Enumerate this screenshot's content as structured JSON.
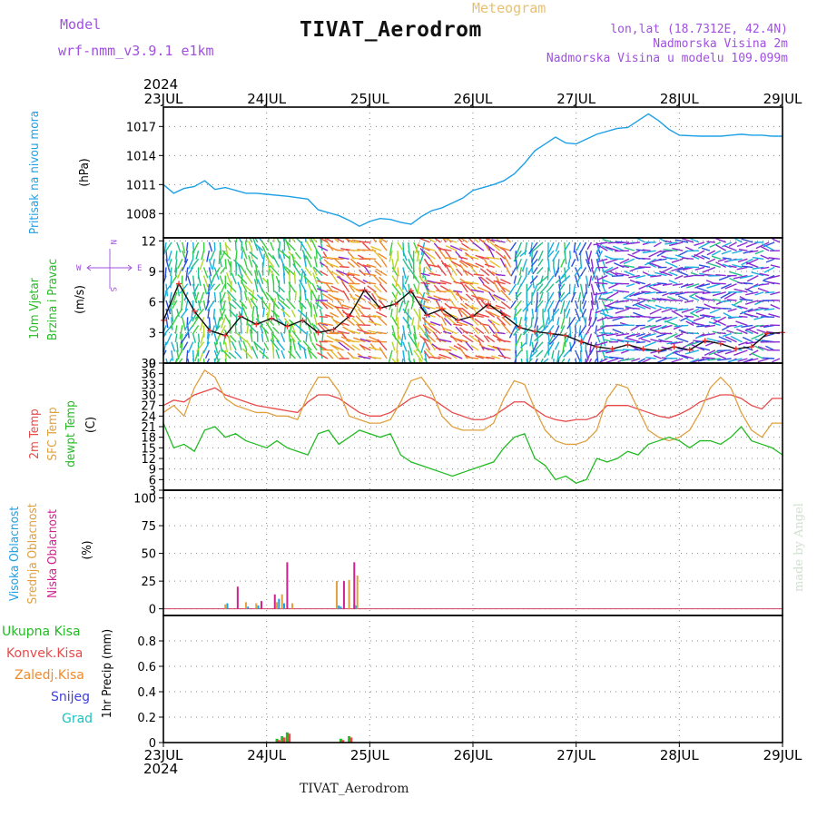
{
  "header": {
    "model_label": "Model",
    "model_name": "wrf-nmm_v3.9.1  e1km",
    "title": "TIVAT_Aerodrom",
    "meteogram": "Meteogram",
    "lonlat": "lon,lat (18.7312E, 42.4N)",
    "elev": "Nadmorska Visina 2m",
    "elev_model": "Nadmorska Visina u modelu 109.099m",
    "year_top": "2024",
    "year_bottom": "2024",
    "footer": "TIVAT_Aerodrom",
    "watermark": "made by Angel"
  },
  "colors": {
    "pressure": "#1ea0e6",
    "t2m": "#e84a4a",
    "sfc": "#e0a040",
    "dew": "#22bb22",
    "high": "#1ea0e6",
    "mid": "#e0a040",
    "low": "#d02090",
    "model": "#a050e0"
  },
  "chart_data": [
    {
      "type": "line",
      "panel": "pressure",
      "ylabel_lines": [
        "Pritisak na nivou mora",
        "(hPa)"
      ],
      "ylim": [
        1005.5,
        1019
      ],
      "yticks": [
        1008,
        1011,
        1014,
        1017
      ],
      "x_days": [
        "23JUL",
        "24JUL",
        "25JUL",
        "26JUL",
        "27JUL",
        "28JUL",
        "29JUL"
      ],
      "series": [
        {
          "key": "pressure",
          "x": [
            0,
            0.1,
            0.2,
            0.3,
            0.4,
            0.5,
            0.6,
            0.7,
            0.8,
            0.9,
            1.0,
            1.2,
            1.4,
            1.5,
            1.6,
            1.7,
            1.8,
            1.9,
            2.0,
            2.1,
            2.2,
            2.3,
            2.4,
            2.5,
            2.6,
            2.7,
            2.8,
            2.9,
            3.0,
            3.1,
            3.2,
            3.3,
            3.4,
            3.5,
            3.6,
            3.7,
            3.8,
            3.9,
            4.0,
            4.2,
            4.4,
            4.5,
            4.6,
            4.7,
            4.8,
            4.9,
            5.0,
            5.2,
            5.4,
            5.5,
            5.6,
            5.7,
            5.8,
            5.9,
            6.0
          ],
          "y": [
            1011,
            1010.1,
            1010.6,
            1010.8,
            1011.4,
            1010.5,
            1010.7,
            1010.4,
            1010.1,
            1010.1,
            1010,
            1009.8,
            1009.5,
            1008.4,
            1008.1,
            1007.8,
            1007.3,
            1006.7,
            1007.2,
            1007.5,
            1007.4,
            1007.1,
            1006.9,
            1007.7,
            1008.3,
            1008.6,
            1009.1,
            1009.6,
            1010.4,
            1010.7,
            1011,
            1011.4,
            1012.1,
            1013.2,
            1014.5,
            1015.2,
            1015.9,
            1015.3,
            1015.2,
            1016.2,
            1016.8,
            1016.9,
            1017.6,
            1018.3,
            1017.6,
            1016.7,
            1016.1,
            1016.0,
            1016,
            1016.1,
            1016.2,
            1016.1,
            1016.1,
            1016.0,
            1016.0
          ]
        }
      ]
    },
    {
      "type": "line",
      "panel": "wind",
      "ylabel_lines": [
        "10m Vjetar",
        "Brzina i Pravac",
        "(m/s)"
      ],
      "dir_legend": [
        "N",
        "W",
        "E",
        "S"
      ],
      "ylim": [
        0,
        12.3
      ],
      "yticks": [
        0,
        3,
        6,
        9,
        12
      ],
      "series": [
        {
          "key": "wind_speed",
          "name": "",
          "x": [
            0,
            0.15,
            0.3,
            0.45,
            0.6,
            0.75,
            0.9,
            1.05,
            1.2,
            1.35,
            1.5,
            1.65,
            1.8,
            1.95,
            2.1,
            2.25,
            2.4,
            2.55,
            2.7,
            2.85,
            3.0,
            3.15,
            3.3,
            3.45,
            3.6,
            3.75,
            3.9,
            4.05,
            4.2,
            4.35,
            4.5,
            4.65,
            4.8,
            4.95,
            5.1,
            5.25,
            5.4,
            5.55,
            5.7,
            5.85,
            6.0
          ],
          "y": [
            4.2,
            7.8,
            5.1,
            3.2,
            2.7,
            4.6,
            3.8,
            4.4,
            3.6,
            4.2,
            3.0,
            3.3,
            4.6,
            7.2,
            5.4,
            5.8,
            7.1,
            4.7,
            5.3,
            4.2,
            4.6,
            5.8,
            4.7,
            3.5,
            3.1,
            2.9,
            2.7,
            2.1,
            1.6,
            1.4,
            1.8,
            1.4,
            1.2,
            1.6,
            1.3,
            2.2,
            1.9,
            1.4,
            1.6,
            2.9,
            3.0
          ]
        }
      ]
    },
    {
      "type": "line",
      "panel": "temperature",
      "ylabel_lines": [
        "2m Temp",
        "SFC Temp",
        "dewpt Temp",
        "(C)"
      ],
      "ylim": [
        3,
        39
      ],
      "yticks": [
        3,
        6,
        9,
        12,
        15,
        18,
        21,
        24,
        27,
        30,
        33,
        36,
        39
      ],
      "series": [
        {
          "key": "t2m",
          "name": "2m Temp",
          "x": [
            0,
            0.1,
            0.2,
            0.3,
            0.4,
            0.5,
            0.6,
            0.7,
            0.8,
            0.9,
            1.0,
            1.1,
            1.2,
            1.3,
            1.4,
            1.5,
            1.6,
            1.7,
            1.8,
            1.9,
            2.0,
            2.1,
            2.2,
            2.3,
            2.4,
            2.5,
            2.6,
            2.7,
            2.8,
            2.9,
            3.0,
            3.1,
            3.2,
            3.3,
            3.4,
            3.5,
            3.6,
            3.7,
            3.8,
            3.9,
            4.0,
            4.1,
            4.2,
            4.3,
            4.4,
            4.5,
            4.6,
            4.7,
            4.8,
            4.9,
            5.0,
            5.1,
            5.2,
            5.3,
            5.4,
            5.5,
            5.6,
            5.7,
            5.8,
            5.9,
            6.0
          ],
          "y": [
            27,
            28.5,
            28,
            30,
            31,
            32,
            30,
            29,
            28,
            27,
            26.5,
            26,
            25.5,
            25,
            28,
            30,
            30,
            29,
            27,
            25,
            24,
            24,
            25,
            27,
            29,
            30,
            29,
            27,
            25,
            24,
            23,
            23,
            24,
            26,
            28,
            28,
            26,
            24,
            23,
            22.5,
            23,
            23,
            24,
            27,
            27,
            27,
            26,
            25,
            24,
            23.5,
            24.5,
            26,
            28,
            29,
            30,
            30,
            29,
            27,
            26,
            29,
            29
          ]
        },
        {
          "key": "sfc",
          "name": "SFC Temp",
          "x": [
            0,
            0.1,
            0.2,
            0.3,
            0.4,
            0.5,
            0.6,
            0.7,
            0.8,
            0.9,
            1.0,
            1.1,
            1.2,
            1.3,
            1.4,
            1.5,
            1.6,
            1.7,
            1.8,
            1.9,
            2.0,
            2.1,
            2.2,
            2.3,
            2.4,
            2.5,
            2.6,
            2.7,
            2.8,
            2.9,
            3.0,
            3.1,
            3.2,
            3.3,
            3.4,
            3.5,
            3.6,
            3.7,
            3.8,
            3.9,
            4.0,
            4.1,
            4.2,
            4.3,
            4.4,
            4.5,
            4.6,
            4.7,
            4.8,
            4.9,
            5.0,
            5.1,
            5.2,
            5.3,
            5.4,
            5.5,
            5.6,
            5.7,
            5.8,
            5.9,
            6.0
          ],
          "y": [
            25,
            27,
            24,
            32,
            37,
            35,
            29,
            27,
            26,
            25,
            25,
            24,
            24,
            23,
            30,
            35,
            35,
            31,
            24,
            23,
            22,
            22,
            23,
            28,
            34,
            35,
            31,
            24,
            21,
            20,
            20,
            20,
            22,
            29,
            34,
            33,
            26,
            20,
            17,
            16,
            16,
            17,
            20,
            29,
            33,
            32,
            26,
            20,
            18,
            17,
            18,
            20,
            25,
            32,
            35,
            32,
            25,
            20,
            18,
            22,
            22
          ]
        },
        {
          "key": "dew",
          "name": "dewpt Temp",
          "x": [
            0,
            0.1,
            0.2,
            0.3,
            0.4,
            0.5,
            0.6,
            0.7,
            0.8,
            0.9,
            1.0,
            1.1,
            1.2,
            1.3,
            1.4,
            1.5,
            1.6,
            1.7,
            1.8,
            1.9,
            2.0,
            2.1,
            2.2,
            2.3,
            2.4,
            2.5,
            2.6,
            2.7,
            2.8,
            2.9,
            3.0,
            3.1,
            3.2,
            3.3,
            3.4,
            3.5,
            3.6,
            3.7,
            3.8,
            3.9,
            4.0,
            4.1,
            4.2,
            4.3,
            4.4,
            4.5,
            4.6,
            4.7,
            4.8,
            4.9,
            5.0,
            5.1,
            5.2,
            5.3,
            5.4,
            5.5,
            5.6,
            5.7,
            5.8,
            5.9,
            6.0
          ],
          "y": [
            22,
            15,
            16,
            14,
            20,
            21,
            18,
            19,
            17,
            16,
            15,
            17,
            15,
            14,
            13,
            19,
            20,
            16,
            18,
            20,
            19,
            18,
            19,
            13,
            11,
            10,
            9,
            8,
            7,
            8,
            9,
            10,
            11,
            15,
            18,
            19,
            12,
            10,
            6,
            7,
            5,
            6,
            12,
            11,
            12,
            14,
            13,
            16,
            17,
            18,
            17,
            15,
            17,
            17,
            16,
            18,
            21,
            17,
            16,
            15,
            13
          ]
        }
      ]
    },
    {
      "type": "bar",
      "panel": "cloud",
      "ylabel_lines": [
        "Visoka Oblacnost",
        "Srednja Oblacnost",
        "Niska  Oblacnost",
        "(%)"
      ],
      "ylim": [
        -6,
        107
      ],
      "yticks": [
        0,
        25,
        50,
        75,
        100
      ],
      "series": [
        {
          "key": "high",
          "name": "Visoka Oblacnost",
          "x": [
            0.62,
            0.82,
            0.92,
            1.12,
            1.17,
            1.7,
            1.72,
            1.85,
            1.87
          ],
          "y": [
            5,
            2,
            3,
            9,
            5,
            3,
            2,
            4,
            3
          ]
        },
        {
          "key": "mid",
          "name": "Srednja Oblacnost",
          "x": [
            0.6,
            0.8,
            0.9,
            1.1,
            1.15,
            1.25,
            1.68,
            1.8,
            1.88
          ],
          "y": [
            4,
            6,
            5,
            6,
            13,
            5,
            25,
            26,
            30
          ]
        },
        {
          "key": "low",
          "name": "Niska  Oblacnost",
          "x": [
            0.72,
            0.95,
            1.08,
            1.2,
            1.75,
            1.85
          ],
          "y": [
            20,
            7,
            13,
            42,
            25,
            42
          ]
        }
      ]
    },
    {
      "type": "bar",
      "panel": "precip",
      "ylabel_lines": [
        "1hr Precip (mm)"
      ],
      "legend": [
        "Ukupna Kisa",
        "Konvek.Kisa",
        "Zaledj.Kisa",
        "Snijeg",
        "Grad"
      ],
      "ylim": [
        0,
        1.0
      ],
      "yticks": [
        0,
        0.2,
        0.4,
        0.6,
        0.8
      ],
      "series": [
        {
          "key": "dew",
          "name": "Ukupna Kisa",
          "x": [
            1.1,
            1.15,
            1.2,
            1.72,
            1.8
          ],
          "y": [
            0.03,
            0.05,
            0.08,
            0.03,
            0.05
          ]
        },
        {
          "key": "t2m",
          "name": "Konvek.Kisa",
          "x": [
            1.12,
            1.17,
            1.22,
            1.74,
            1.82
          ],
          "y": [
            0.02,
            0.04,
            0.07,
            0.02,
            0.04
          ]
        }
      ]
    }
  ]
}
